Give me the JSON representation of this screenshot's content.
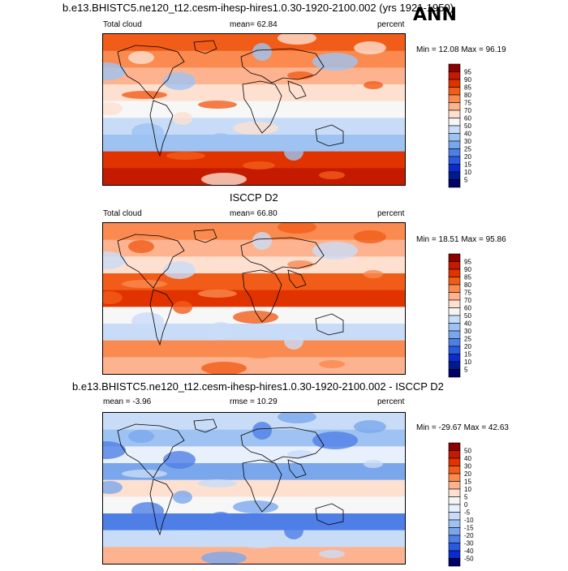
{
  "title": "b.e13.BHISTC5.ne120_t12.cesm-ihesp-hires1.0.30-1920-2100.002 (yrs 1921-1950)",
  "season": "ANN",
  "panels": [
    {
      "heading": "",
      "left_label": "Total cloud",
      "center_label": "mean=  62.84",
      "right_label": "percent",
      "minmax": "Min =  12.08 Max =  96.19",
      "colorbar": {
        "labels": [
          "95",
          "90",
          "85",
          "80",
          "75",
          "70",
          "60",
          "50",
          "40",
          "30",
          "25",
          "20",
          "15",
          "10",
          "5"
        ],
        "colors": [
          "#8b0000",
          "#c41a00",
          "#e03300",
          "#f25c19",
          "#fa8a4f",
          "#fdb390",
          "#fde0d0",
          "#f5f5f5",
          "#c9dcf7",
          "#9ec3f2",
          "#7aa7ec",
          "#4f7fe6",
          "#2a5ae0",
          "#0a2bd0",
          "#001a8f",
          "#000066"
        ]
      },
      "palette": [
        "#f25c19",
        "#fa8a4f",
        "#fdb390",
        "#fde0d0",
        "#f7f7f7",
        "#c9dcf7",
        "#9ec3f2",
        "#e03300",
        "#c41a00"
      ]
    },
    {
      "heading": "ISCCP D2",
      "left_label": "Total cloud",
      "center_label": "mean=  66.80",
      "right_label": "percent",
      "minmax": "Min =  18.51 Max =  95.86",
      "colorbar": {
        "labels": [
          "95",
          "90",
          "85",
          "80",
          "75",
          "70",
          "60",
          "50",
          "40",
          "30",
          "25",
          "20",
          "15",
          "10",
          "5"
        ],
        "colors": [
          "#8b0000",
          "#c41a00",
          "#e03300",
          "#f25c19",
          "#fa8a4f",
          "#fdb390",
          "#fde0d0",
          "#f5f5f5",
          "#c9dcf7",
          "#9ec3f2",
          "#7aa7ec",
          "#4f7fe6",
          "#2a5ae0",
          "#0a2bd0",
          "#001a8f",
          "#000066"
        ]
      },
      "palette": [
        "#fa8a4f",
        "#fdb390",
        "#fde0d0",
        "#f25c19",
        "#e03300",
        "#f7f7f7",
        "#c9dcf7",
        "#fa8a4f",
        "#fdb390"
      ]
    },
    {
      "heading": "b.e13.BHISTC5.ne120_t12.cesm-ihesp-hires1.0.30-1920-2100.002 - ISCCP D2",
      "left_label": "mean =  -3.96",
      "center_label": "rmse =  10.29",
      "right_label": "percent",
      "minmax": "Min = -29.67 Max =  42.63",
      "colorbar": {
        "labels": [
          "50",
          "40",
          "30",
          "20",
          "15",
          "10",
          "5",
          "0",
          "-5",
          "-10",
          "-15",
          "-20",
          "-30",
          "-40",
          "-50"
        ],
        "colors": [
          "#8b0000",
          "#c41a00",
          "#e03300",
          "#f25c19",
          "#fa8a4f",
          "#fdb390",
          "#fde0d0",
          "#f5f5f5",
          "#e8f0fb",
          "#c9dcf7",
          "#9ec3f2",
          "#7aa7ec",
          "#4f7fe6",
          "#2a5ae0",
          "#0a2bd0",
          "#000066"
        ]
      },
      "palette": [
        "#c9dcf7",
        "#9ec3f2",
        "#e8f0fb",
        "#7aa7ec",
        "#fde0d0",
        "#f7f7f7",
        "#4f7fe6",
        "#c9dcf7",
        "#fdb390"
      ]
    }
  ]
}
